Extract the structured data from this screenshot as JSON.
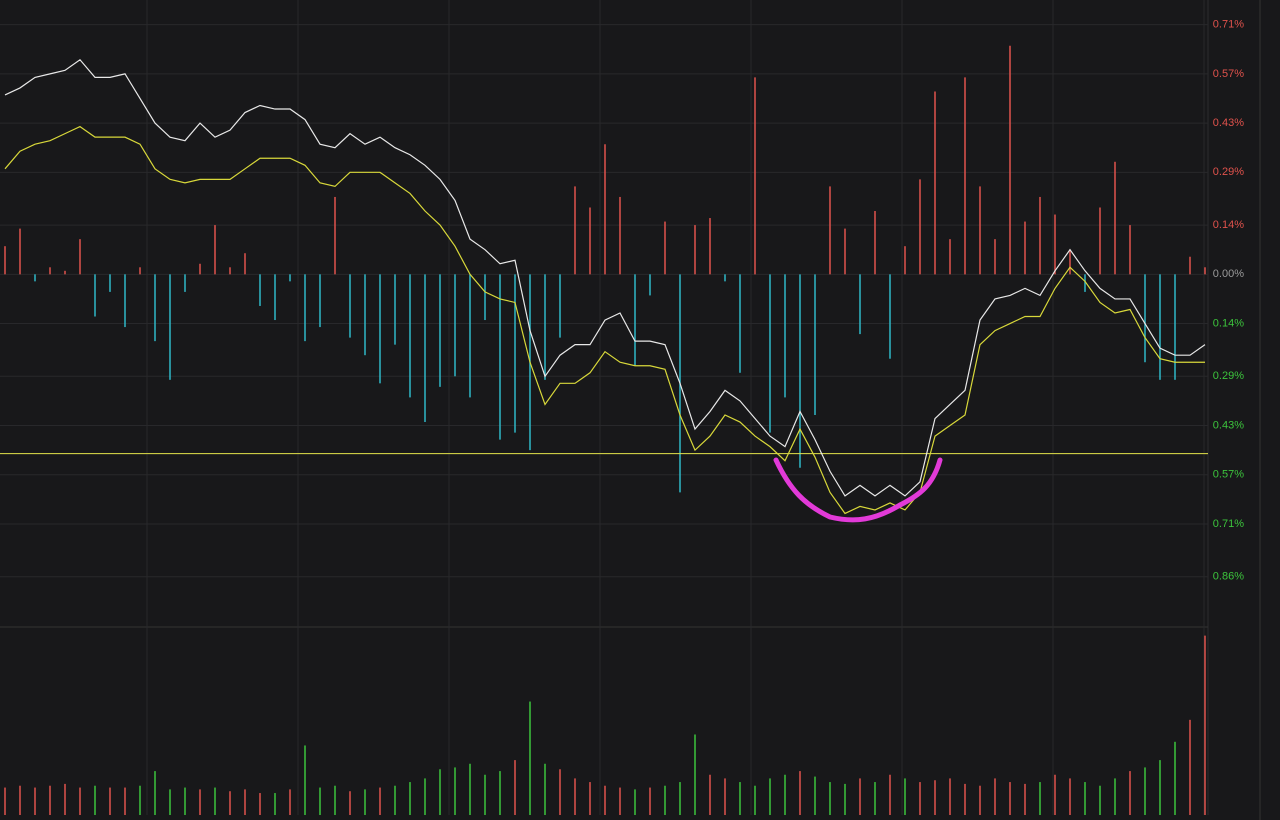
{
  "chart_data": {
    "type": "line",
    "ylim": [
      -1.0,
      0.78
    ],
    "yticks": [
      {
        "value": 0.71,
        "label": "0.71%"
      },
      {
        "value": 0.57,
        "label": "0.57%"
      },
      {
        "value": 0.43,
        "label": "0.43%"
      },
      {
        "value": 0.29,
        "label": "0.29%"
      },
      {
        "value": 0.14,
        "label": "0.14%"
      },
      {
        "value": 0,
        "label": "0.00%"
      },
      {
        "value": -0.14,
        "label": "0.14%"
      },
      {
        "value": -0.29,
        "label": "0.29%"
      },
      {
        "value": -0.43,
        "label": "0.43%"
      },
      {
        "value": -0.57,
        "label": "0.57%"
      },
      {
        "value": -0.71,
        "label": "0.71%"
      },
      {
        "value": -0.86,
        "label": "0.86%"
      }
    ],
    "tick_colors": {
      "positive": "#e0524c",
      "zero": "#9a9a9a",
      "negative": "#3cc43c"
    },
    "grid": true,
    "reference_line": {
      "value": -0.51,
      "color": "#e3e34a"
    },
    "series": [
      {
        "type": "line",
        "color": "#e8e8e8",
        "values": [
          0.51,
          0.53,
          0.56,
          0.57,
          0.58,
          0.61,
          0.56,
          0.56,
          0.57,
          0.5,
          0.43,
          0.39,
          0.38,
          0.43,
          0.39,
          0.41,
          0.46,
          0.48,
          0.47,
          0.47,
          0.44,
          0.37,
          0.36,
          0.4,
          0.37,
          0.39,
          0.36,
          0.34,
          0.31,
          0.27,
          0.21,
          0.1,
          0.07,
          0.03,
          0.04,
          -0.16,
          -0.29,
          -0.23,
          -0.2,
          -0.2,
          -0.13,
          -0.11,
          -0.19,
          -0.19,
          -0.2,
          -0.31,
          -0.44,
          -0.39,
          -0.33,
          -0.36,
          -0.41,
          -0.46,
          -0.49,
          -0.39,
          -0.47,
          -0.56,
          -0.63,
          -0.6,
          -0.63,
          -0.6,
          -0.63,
          -0.59,
          -0.41,
          -0.37,
          -0.33,
          -0.13,
          -0.07,
          -0.06,
          -0.04,
          -0.06,
          0.01,
          0.07,
          0.01,
          -0.04,
          -0.07,
          -0.07,
          -0.14,
          -0.21,
          -0.23,
          -0.23,
          -0.2
        ]
      },
      {
        "type": "line",
        "color": "#d8d83a",
        "values": [
          0.3,
          0.35,
          0.37,
          0.38,
          0.4,
          0.42,
          0.39,
          0.39,
          0.39,
          0.37,
          0.3,
          0.27,
          0.26,
          0.27,
          0.27,
          0.27,
          0.3,
          0.33,
          0.33,
          0.33,
          0.31,
          0.26,
          0.25,
          0.29,
          0.29,
          0.29,
          0.26,
          0.23,
          0.18,
          0.14,
          0.08,
          0.0,
          -0.05,
          -0.07,
          -0.08,
          -0.25,
          -0.37,
          -0.31,
          -0.31,
          -0.28,
          -0.22,
          -0.25,
          -0.26,
          -0.26,
          -0.27,
          -0.4,
          -0.5,
          -0.46,
          -0.4,
          -0.42,
          -0.46,
          -0.49,
          -0.53,
          -0.44,
          -0.52,
          -0.62,
          -0.68,
          -0.66,
          -0.67,
          -0.65,
          -0.67,
          -0.62,
          -0.46,
          -0.43,
          -0.4,
          -0.2,
          -0.16,
          -0.14,
          -0.12,
          -0.12,
          -0.04,
          0.02,
          -0.02,
          -0.08,
          -0.11,
          -0.1,
          -0.18,
          -0.24,
          -0.25,
          -0.25,
          -0.25
        ]
      },
      {
        "type": "bar",
        "color": "#e0524c",
        "negative_color": "#2fb8c8",
        "values": [
          0.08,
          0.13,
          -0.02,
          0.02,
          0.01,
          0.1,
          -0.12,
          -0.05,
          -0.15,
          0.02,
          -0.19,
          -0.3,
          -0.05,
          0.03,
          0.14,
          0.02,
          0.06,
          -0.09,
          -0.13,
          -0.02,
          -0.19,
          -0.15,
          0.22,
          -0.18,
          -0.23,
          -0.31,
          -0.2,
          -0.35,
          -0.42,
          -0.32,
          -0.29,
          -0.35,
          -0.13,
          -0.47,
          -0.45,
          -0.5,
          -0.3,
          -0.18,
          0.25,
          0.19,
          0.37,
          0.22,
          -0.26,
          -0.06,
          0.15,
          -0.62,
          0.14,
          0.16,
          -0.02,
          -0.28,
          0.56,
          -0.45,
          -0.35,
          -0.55,
          -0.4,
          0.25,
          0.13,
          -0.17,
          0.18,
          -0.24,
          0.08,
          0.27,
          0.52,
          0.1,
          0.56,
          0.25,
          0.1,
          0.65,
          0.15,
          0.22,
          0.17,
          0.07,
          -0.05,
          0.19,
          0.32,
          0.14,
          -0.25,
          -0.3,
          -0.3,
          0.05,
          0.02
        ]
      }
    ],
    "volume": {
      "ylim": [
        0,
        100
      ],
      "up_color": "#e0524c",
      "down_color": "#3cc43c",
      "values": [
        15,
        16,
        15,
        16,
        17,
        15,
        16,
        15,
        15,
        16,
        24,
        14,
        15,
        14,
        15,
        13,
        14,
        12,
        12,
        14,
        38,
        15,
        16,
        13,
        14,
        15,
        16,
        18,
        20,
        25,
        26,
        28,
        22,
        24,
        30,
        62,
        28,
        25,
        20,
        18,
        16,
        15,
        14,
        15,
        16,
        18,
        44,
        22,
        20,
        18,
        16,
        20,
        22,
        24,
        21,
        18,
        17,
        20,
        18,
        22,
        20,
        18,
        19,
        20,
        17,
        16,
        20,
        18,
        17,
        18,
        22,
        20,
        18,
        16,
        20,
        24,
        26,
        30,
        40,
        52,
        98
      ]
    }
  }
}
